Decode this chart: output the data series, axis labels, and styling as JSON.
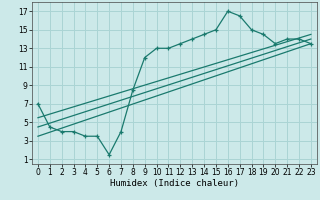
{
  "xlabel": "Humidex (Indice chaleur)",
  "background_color": "#cce9e9",
  "grid_color": "#aad4d4",
  "line_color": "#1a7a6e",
  "xlim": [
    -0.5,
    23.5
  ],
  "ylim": [
    0.5,
    18
  ],
  "xticks": [
    0,
    1,
    2,
    3,
    4,
    5,
    6,
    7,
    8,
    9,
    10,
    11,
    12,
    13,
    14,
    15,
    16,
    17,
    18,
    19,
    20,
    21,
    22,
    23
  ],
  "yticks": [
    1,
    3,
    5,
    7,
    9,
    11,
    13,
    15,
    17
  ],
  "line1_x": [
    0,
    1,
    2,
    3,
    4,
    5,
    6,
    7,
    8,
    9,
    10,
    11,
    12,
    13,
    14,
    15,
    16,
    17,
    18,
    19,
    20,
    21,
    22,
    23
  ],
  "line1_y": [
    7,
    4.5,
    4,
    4,
    3.5,
    3.5,
    1.5,
    4,
    8.5,
    12,
    13,
    13,
    13.5,
    14,
    14.5,
    15,
    17,
    16.5,
    15,
    14.5,
    13.5,
    14,
    14,
    13.5
  ],
  "line2_x": [
    0,
    23
  ],
  "line2_y": [
    3.5,
    13.5
  ],
  "line3_x": [
    0,
    23
  ],
  "line3_y": [
    4.5,
    14.0
  ],
  "line4_x": [
    0,
    23
  ],
  "line4_y": [
    5.5,
    14.5
  ],
  "xlabel_fontsize": 6.5,
  "tick_fontsize": 5.5
}
